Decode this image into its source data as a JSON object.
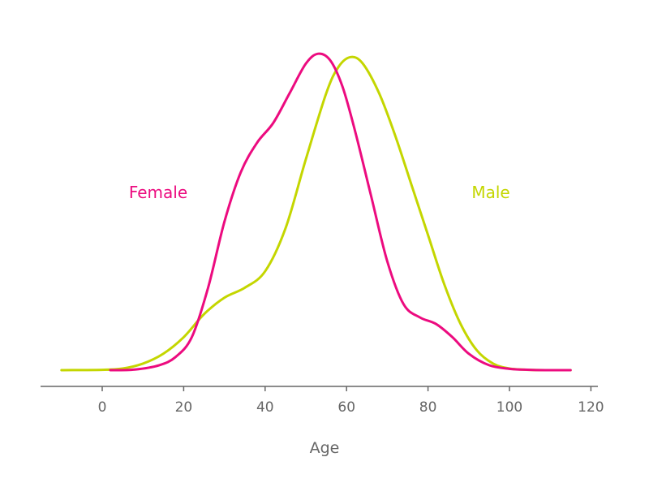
{
  "chart_data": {
    "type": "line",
    "title": "",
    "xlabel": "Age",
    "ylabel": "",
    "xlim": [
      -10,
      120
    ],
    "ylim": [
      0,
      1.0
    ],
    "x_ticks": [
      0,
      20,
      40,
      60,
      80,
      100,
      120
    ],
    "grid": false,
    "legend": "inline labels",
    "series": [
      {
        "name": "Female",
        "color": "#ec0b7f",
        "x": [
          2,
          8,
          14,
          18,
          22,
          26,
          30,
          34,
          38,
          42,
          46,
          50,
          53,
          56,
          59,
          62,
          66,
          70,
          74,
          78,
          82,
          86,
          90,
          95,
          100,
          105,
          110,
          115
        ],
        "y": [
          0.0,
          0.002,
          0.015,
          0.04,
          0.1,
          0.25,
          0.45,
          0.6,
          0.69,
          0.75,
          0.84,
          0.93,
          0.96,
          0.94,
          0.86,
          0.73,
          0.53,
          0.33,
          0.2,
          0.16,
          0.14,
          0.1,
          0.05,
          0.015,
          0.004,
          0.001,
          0.0,
          0.0
        ]
      },
      {
        "name": "Male",
        "color": "#c4d600",
        "x": [
          -10,
          0,
          5,
          10,
          15,
          20,
          25,
          30,
          35,
          40,
          45,
          50,
          55,
          58,
          61,
          64,
          68,
          72,
          76,
          80,
          84,
          88,
          92,
          96,
          100,
          105,
          110,
          115
        ],
        "y": [
          0.0,
          0.001,
          0.005,
          0.02,
          0.05,
          0.1,
          0.17,
          0.22,
          0.25,
          0.3,
          0.43,
          0.64,
          0.84,
          0.92,
          0.95,
          0.93,
          0.84,
          0.71,
          0.56,
          0.41,
          0.26,
          0.14,
          0.06,
          0.02,
          0.005,
          0.001,
          0.0,
          0.0
        ]
      }
    ]
  }
}
